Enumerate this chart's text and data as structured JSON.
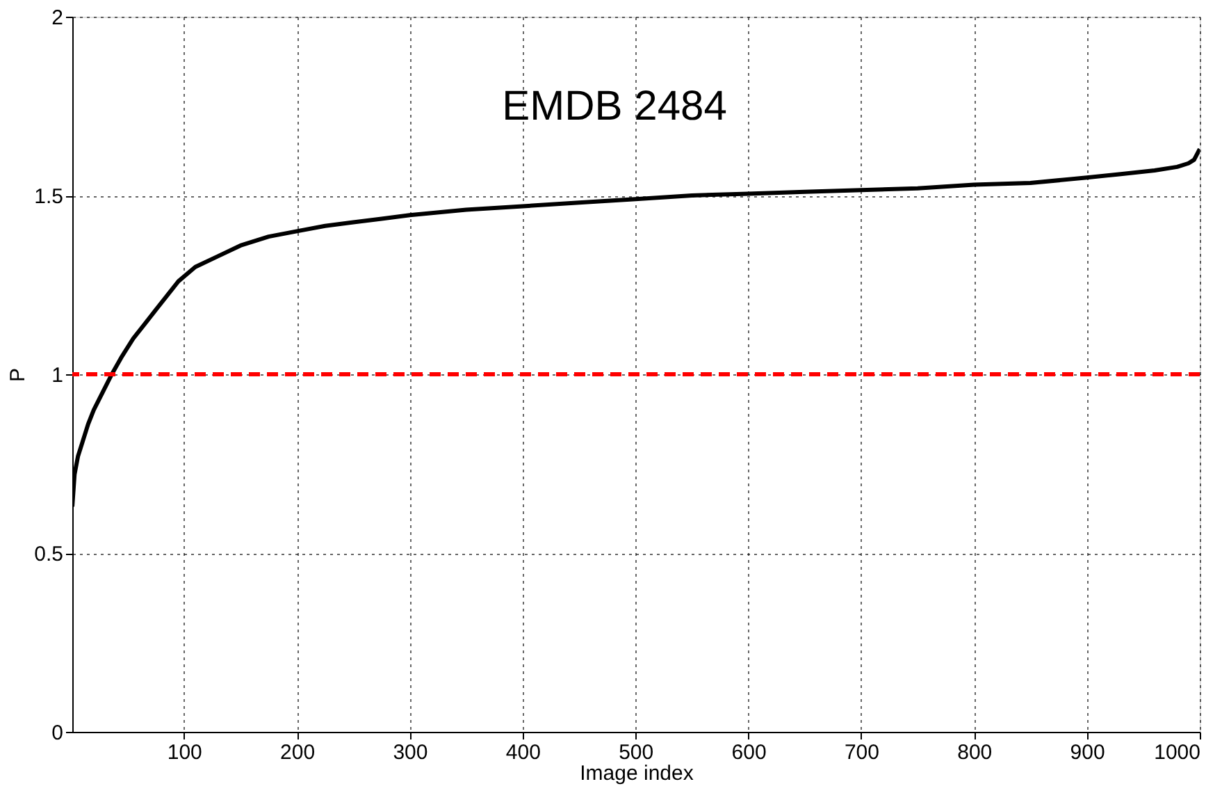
{
  "chart_data": {
    "type": "line",
    "title": "EMDB 2484",
    "xlabel": "Image index",
    "ylabel": "P",
    "x": [
      1,
      3,
      6,
      10,
      15,
      20,
      28,
      36,
      45,
      55,
      65,
      75,
      85,
      95,
      110,
      130,
      150,
      175,
      200,
      225,
      250,
      275,
      300,
      350,
      400,
      450,
      500,
      550,
      600,
      650,
      700,
      750,
      800,
      850,
      900,
      930,
      960,
      980,
      990,
      995,
      1000
    ],
    "series": [
      {
        "color": "#000000",
        "values": [
          0.63,
          0.72,
          0.77,
          0.81,
          0.86,
          0.9,
          0.95,
          1.0,
          1.05,
          1.1,
          1.14,
          1.18,
          1.22,
          1.26,
          1.3,
          1.33,
          1.36,
          1.385,
          1.4,
          1.415,
          1.425,
          1.435,
          1.445,
          1.46,
          1.47,
          1.48,
          1.49,
          1.5,
          1.505,
          1.51,
          1.515,
          1.52,
          1.53,
          1.535,
          1.55,
          1.56,
          1.57,
          1.58,
          1.59,
          1.6,
          1.63
        ]
      }
    ],
    "xlim": [
      1,
      1000
    ],
    "xticks": [
      100,
      200,
      300,
      400,
      500,
      600,
      700,
      800,
      900,
      1000
    ],
    "ylim": [
      0,
      2
    ],
    "yticks": [
      0,
      0.5,
      1,
      1.5,
      2
    ],
    "ref_lines": [
      {
        "axis": "y",
        "value": 1,
        "color": "#ff0000",
        "line_style": "dashed"
      }
    ],
    "grid": true,
    "line_style": "solid",
    "marker": "none"
  }
}
